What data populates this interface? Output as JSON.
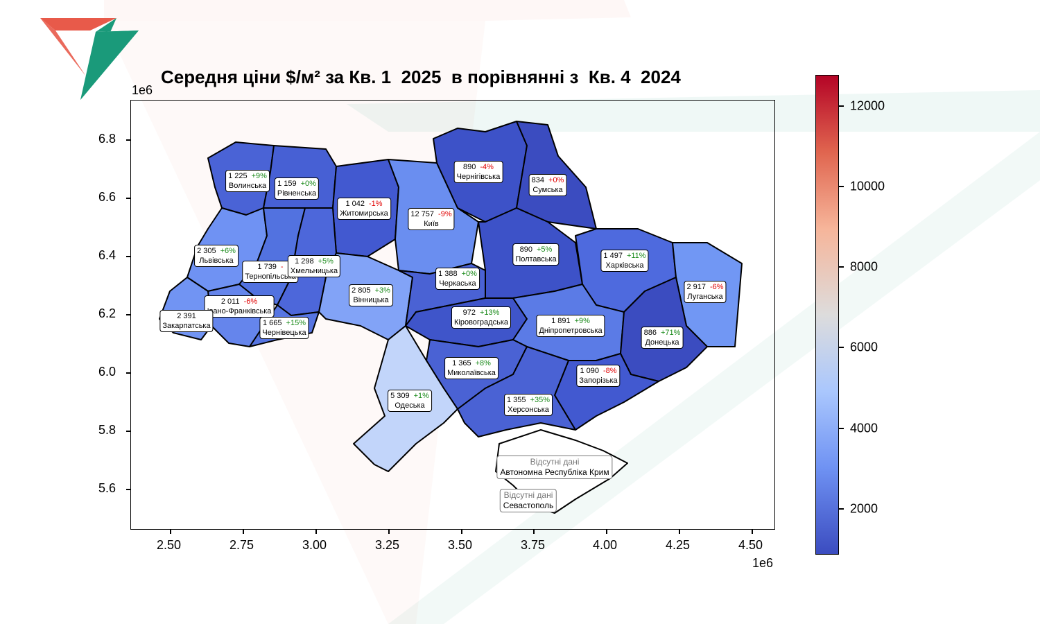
{
  "title": "Середня ціни $/м² за Кв. 1  2025  в порівнянні з  Кв. 4  2024",
  "axes": {
    "x_ticks": [
      "2.50",
      "2.75",
      "3.00",
      "3.25",
      "3.50",
      "3.75",
      "4.00",
      "4.25",
      "4.50"
    ],
    "y_ticks": [
      "6.8",
      "6.6",
      "6.4",
      "6.2",
      "6.0",
      "5.8",
      "5.6"
    ],
    "x_exponent": "1e6",
    "y_exponent": "1e6"
  },
  "colorbar": {
    "ticks": [
      "12000",
      "10000",
      "8000",
      "6000",
      "4000",
      "2000"
    ],
    "min": 834,
    "max": 12757,
    "colormap": "coolwarm"
  },
  "regions": [
    {
      "name": "Волинська",
      "value": "1 225",
      "change": "+9%",
      "dir": "up"
    },
    {
      "name": "Рівненська",
      "value": "1 159",
      "change": "+0%",
      "dir": "up"
    },
    {
      "name": "Житомирська",
      "value": "1 042",
      "change": "-1%",
      "dir": "dn"
    },
    {
      "name": "Київ",
      "value": "12 757",
      "change": "-9%",
      "dir": "dn"
    },
    {
      "name": "Чернігівська",
      "value": "890",
      "change": "-4%",
      "dir": "dn"
    },
    {
      "name": "Сумська",
      "value": "834",
      "change": "+0%",
      "dir": "dn"
    },
    {
      "name": "Львівська",
      "value": "2 305",
      "change": "+6%",
      "dir": "up"
    },
    {
      "name": "Тернопільська",
      "value": "1 739",
      "change": "-",
      "dir": "dn"
    },
    {
      "name": "Хмельницька",
      "value": "1 298",
      "change": "+5%",
      "dir": "up"
    },
    {
      "name": "Вінницька",
      "value": "2 805",
      "change": "+3%",
      "dir": "up"
    },
    {
      "name": "Черкаська",
      "value": "1 388",
      "change": "+0%",
      "dir": "up"
    },
    {
      "name": "Полтавська",
      "value": "890",
      "change": "+5%",
      "dir": "up"
    },
    {
      "name": "Харківська",
      "value": "1 497",
      "change": "+11%",
      "dir": "up"
    },
    {
      "name": "Луганська",
      "value": "2 917",
      "change": "-6%",
      "dir": "dn"
    },
    {
      "name": "Івано-Франківська",
      "value": "2 011",
      "change": "-6%",
      "dir": "dn"
    },
    {
      "name": "Закарпатська",
      "value": "2 391",
      "change": "",
      "dir": "up"
    },
    {
      "name": "Чернівецька",
      "value": "1 665",
      "change": "+15%",
      "dir": "up"
    },
    {
      "name": "Кіровоградська",
      "value": "972",
      "change": "+13%",
      "dir": "up"
    },
    {
      "name": "Дніпропетровська",
      "value": "1 891",
      "change": "+9%",
      "dir": "up"
    },
    {
      "name": "Донецька",
      "value": "886",
      "change": "+71%",
      "dir": "up"
    },
    {
      "name": "Миколаївська",
      "value": "1 365",
      "change": "+8%",
      "dir": "up"
    },
    {
      "name": "Запорізька",
      "value": "1 090",
      "change": "-8%",
      "dir": "dn"
    },
    {
      "name": "Одеська",
      "value": "5 309",
      "change": "+1%",
      "dir": "up"
    },
    {
      "name": "Херсонська",
      "value": "1 355",
      "change": "+35%",
      "dir": "up"
    }
  ],
  "missing": [
    {
      "note": "Відсутні дані",
      "name": "Автономна Республіка Крим"
    },
    {
      "note": "Відсутні дані",
      "name": "Севастополь"
    }
  ],
  "colors": {
    "low": "#3b4cc0",
    "mid": "#dddcdc",
    "high": "#b40426",
    "up": "#1a8a1a",
    "down": "#e00000",
    "logo_red": "#e85a4a",
    "logo_green": "#1a9a7a"
  }
}
